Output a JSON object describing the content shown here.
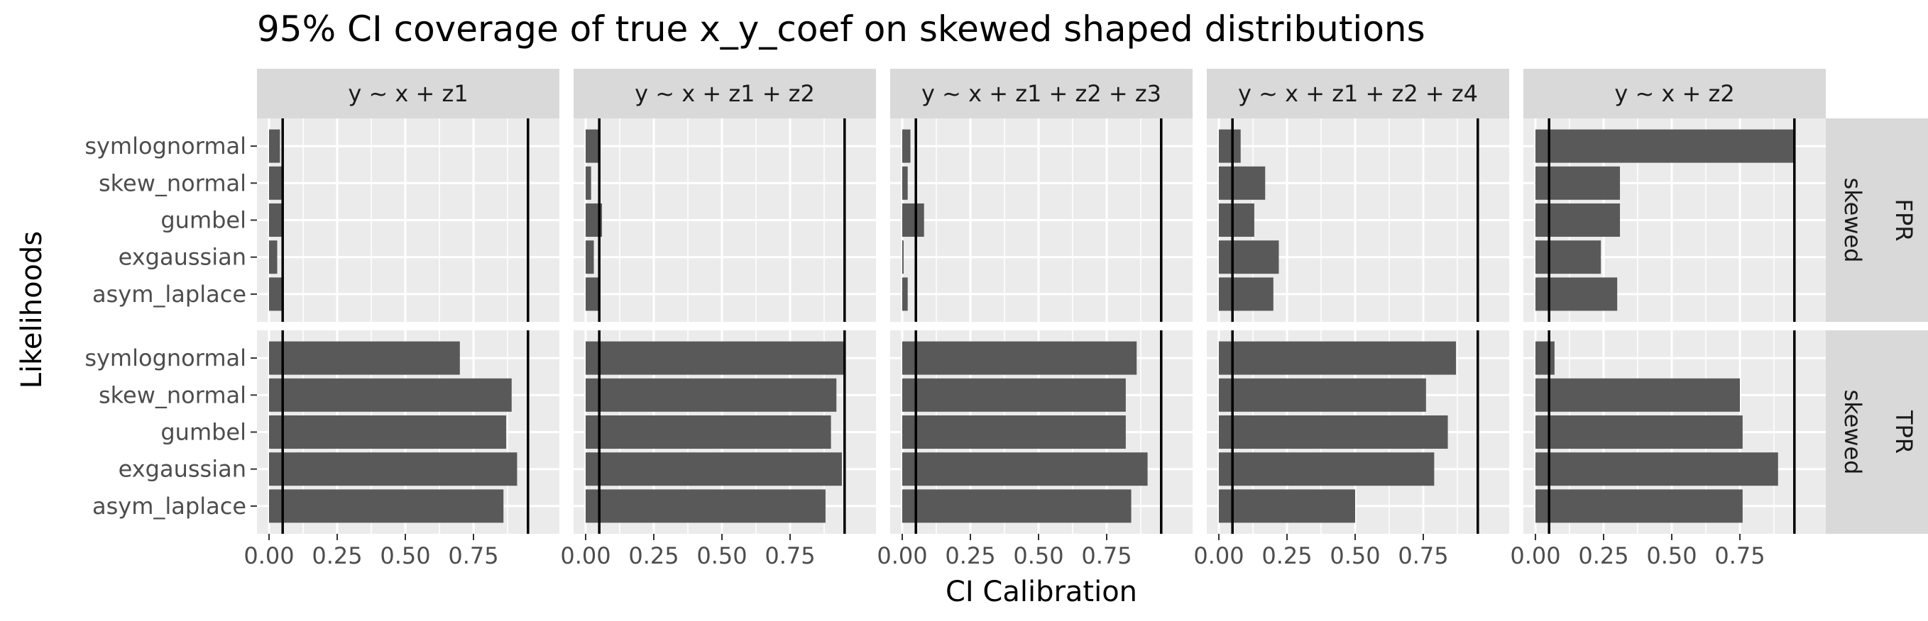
{
  "chart_data": {
    "type": "bar",
    "orientation": "horizontal",
    "title": "95% CI coverage of true x_y_coef on skewed shaped distributions",
    "xlabel": "CI Calibration",
    "ylabel": "Likelihoods",
    "xlim": [
      0,
      0.95
    ],
    "x_ticks": [
      "0.00",
      "0.25",
      "0.50",
      "0.75"
    ],
    "x_tick_values": [
      0,
      0.25,
      0.5,
      0.75
    ],
    "categories": [
      "symlognormal",
      "skew_normal",
      "gumbel",
      "exgaussian",
      "asym_laplace"
    ],
    "reference_lines": [
      0.05,
      0.95
    ],
    "grid": true,
    "legend": "none",
    "colors": {
      "bar": "#595959",
      "panel": "#ebebeb",
      "grid": "#ffffff",
      "strip": "#d9d9d9",
      "refline": "#000000"
    },
    "facet_columns": [
      "y ~ x + z1",
      "y ~ x + z1 + z2",
      "y ~ x + z1 + z2 + z3",
      "y ~ x + z1 + z2 + z4",
      "y ~ x + z2"
    ],
    "facet_rows": [
      {
        "labels": [
          "FPR",
          "skewed"
        ]
      },
      {
        "labels": [
          "TPR",
          "skewed"
        ]
      }
    ],
    "values": [
      [
        [
          0.04,
          0.05,
          0.05,
          0.03,
          0.05
        ],
        [
          0.05,
          0.02,
          0.06,
          0.03,
          0.05
        ],
        [
          0.03,
          0.02,
          0.08,
          0.005,
          0.02
        ],
        [
          0.08,
          0.17,
          0.13,
          0.22,
          0.2
        ],
        [
          0.95,
          0.31,
          0.31,
          0.24,
          0.3
        ]
      ],
      [
        [
          0.7,
          0.89,
          0.87,
          0.91,
          0.86
        ],
        [
          0.95,
          0.92,
          0.9,
          0.94,
          0.88
        ],
        [
          0.86,
          0.82,
          0.82,
          0.9,
          0.84
        ],
        [
          0.87,
          0.76,
          0.84,
          0.79,
          0.5
        ],
        [
          0.07,
          0.75,
          0.76,
          0.89,
          0.76
        ]
      ]
    ]
  }
}
